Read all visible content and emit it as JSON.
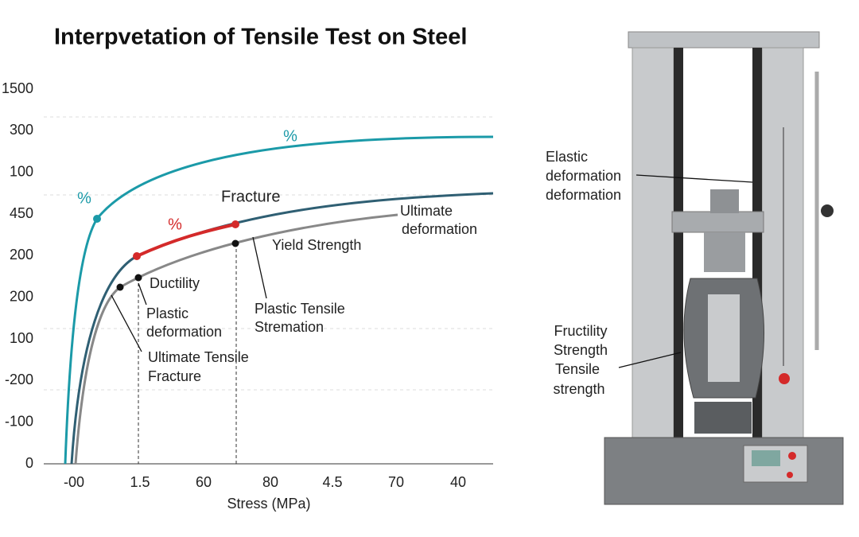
{
  "title": "Interpvetation of Tensile Test on Steel",
  "y_axis_labels": [
    "1500",
    "300",
    "100",
    "450",
    "200",
    "200",
    "100",
    "-200",
    "-100",
    "0"
  ],
  "x_axis_labels": [
    "-00",
    "1.5",
    "60",
    "80",
    "4.5",
    "70",
    "40"
  ],
  "x_axis_title": "Stress (MPa)",
  "annotations": {
    "percent_a": "%",
    "percent_b": "%",
    "percent_c": "%",
    "fracture": "Fracture",
    "ultimate_deformation": [
      "Ultimate",
      "deformation"
    ],
    "yield_strength": "Yield Strength",
    "ductility": "Ductility",
    "plastic_deformation": [
      "Plastic",
      "deformation"
    ],
    "plastic_tensile": [
      "Plastic Tensile",
      "Stremation"
    ],
    "ultimate_tensile": [
      "Ultimate Tensile",
      "Fracture"
    ]
  },
  "machine_labels": {
    "elastic": [
      "Elastic",
      "deformation",
      "deformation"
    ],
    "fructility": [
      "Fructility",
      "Strength",
      "Tensile",
      "strength"
    ]
  }
}
